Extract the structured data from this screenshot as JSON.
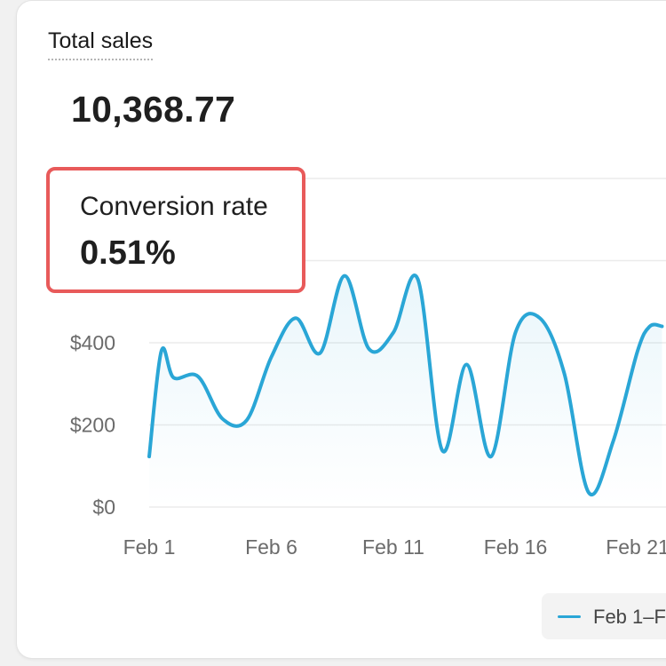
{
  "card": {
    "title": "Total sales",
    "total_value": "10,368.77"
  },
  "highlight": {
    "label": "Conversion rate",
    "value": "0.51%",
    "border_color": "#e85a5a"
  },
  "legend": {
    "label": "Feb 1–F",
    "color": "#2aa6d6"
  },
  "chart_data": {
    "type": "line",
    "title": "Total sales",
    "xlabel": "",
    "ylabel": "",
    "x_tick_labels": [
      "Feb 1",
      "Feb 6",
      "Feb 11",
      "Feb 16",
      "Feb 21"
    ],
    "y_tick_labels": [
      "$0",
      "$200",
      "$400"
    ],
    "ylim": [
      0,
      800
    ],
    "grid": true,
    "line_color": "#2aa6d6",
    "series": [
      {
        "name": "Feb 1–F",
        "x": [
          1,
          1.5,
          2,
          3,
          4,
          5,
          6,
          7,
          8,
          9,
          10,
          11,
          12,
          13,
          14,
          15,
          16,
          17,
          18,
          19,
          20,
          21,
          21.5,
          22
        ],
        "values": [
          123,
          380,
          315,
          318,
          215,
          212,
          365,
          460,
          375,
          563,
          385,
          425,
          555,
          138,
          347,
          123,
          425,
          460,
          325,
          35,
          160,
          380,
          440,
          440
        ]
      }
    ]
  }
}
